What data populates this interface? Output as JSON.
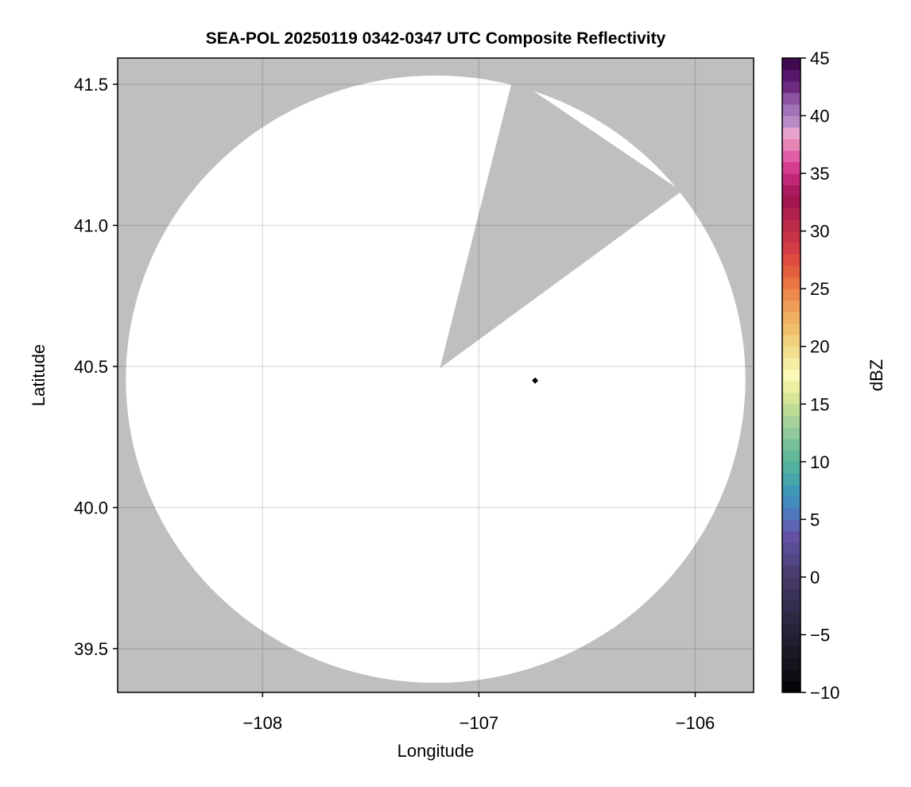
{
  "chart_data": {
    "type": "heatmap",
    "title": "SEA-POL 20250119 0342-0347 UTC Composite Reflectivity",
    "xlabel": "Longitude",
    "ylabel": "Latitude",
    "xlim": [
      -108.67,
      -105.73
    ],
    "ylim": [
      39.345,
      41.593
    ],
    "xticks": [
      -108,
      -107,
      -106
    ],
    "xtick_labels": [
      "−108",
      "−107",
      "−106"
    ],
    "yticks": [
      39.5,
      40.0,
      40.5,
      41.0,
      41.5
    ],
    "ytick_labels": [
      "39.5",
      "40.0",
      "40.5",
      "41.0",
      "41.5"
    ],
    "grid": true,
    "background_color": "#bfbfbf",
    "no_echo_color": "#ffffff",
    "coverage_ellipse": {
      "center_lon": -107.2,
      "center_lat": 40.455,
      "radius_lon": 1.432,
      "radius_lat": 1.076
    },
    "blocked_sector": [
      [
        -107.18,
        40.494
      ],
      [
        -106.842,
        41.525
      ],
      [
        -106.0625,
        41.121
      ]
    ],
    "marker": {
      "lon": -106.74,
      "lat": 40.45,
      "shape": "diamond",
      "color": "#000000"
    },
    "colorbar": {
      "label": "dBZ",
      "range": [
        -10,
        45
      ],
      "ticks": [
        -10,
        -5,
        0,
        5,
        10,
        15,
        20,
        25,
        30,
        35,
        40,
        45
      ],
      "tick_labels": [
        "−10",
        "−5",
        "0",
        "5",
        "10",
        "15",
        "20",
        "25",
        "30",
        "35",
        "40",
        "45"
      ],
      "colors": [
        "#050407",
        "#0f0d14",
        "#16131d",
        "#1c1826",
        "#221d2f",
        "#28223a",
        "#2f2843",
        "#352d4f",
        "#3b3259",
        "#433864",
        "#4a3e70",
        "#544785",
        "#5b4d93",
        "#6352a3",
        "#5f64b2",
        "#4f78bd",
        "#438abf",
        "#3f98b6",
        "#45a5aa",
        "#52b09f",
        "#62b899",
        "#78c198",
        "#90c99a",
        "#a7d19a",
        "#bedb96",
        "#d6e597",
        "#ecf0a3",
        "#fbf8b8",
        "#f6eda5",
        "#f2df90",
        "#f1d07e",
        "#efbf6c",
        "#eeb063",
        "#ed9d58",
        "#ec8a4d",
        "#eb7443",
        "#e45f3e",
        "#de4c40",
        "#d33d45",
        "#c83348",
        "#bd2b4b",
        "#b0214d",
        "#a2154f",
        "#a91a5e",
        "#c12677",
        "#d43c8e",
        "#e05ea6",
        "#e784b6",
        "#e8a3cc",
        "#b98bc6",
        "#a273b7",
        "#8c53a0",
        "#6c2a80",
        "#56176d",
        "#3f0a4e"
      ]
    }
  }
}
